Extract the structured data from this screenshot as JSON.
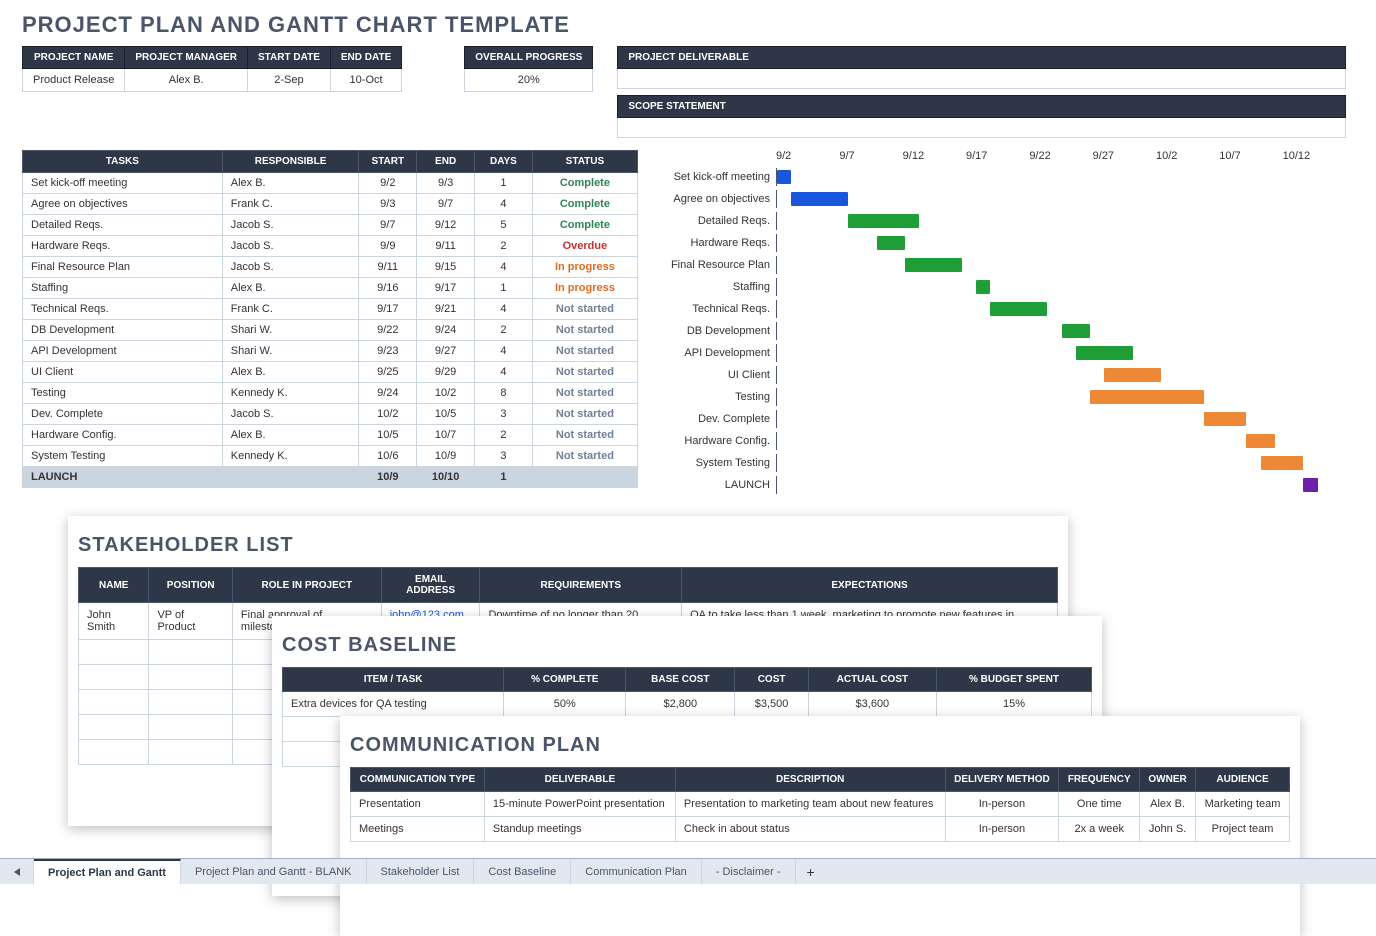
{
  "page_title": "PROJECT PLAN AND GANTT CHART TEMPLATE",
  "colors": {
    "header_bg": "#2d3748",
    "header_text": "#ffffff",
    "border": "#cbd5e0",
    "muted": "#4a5568",
    "launch_row_bg": "#cbd5e0",
    "status_complete": "#2f855a",
    "status_overdue": "#c53030",
    "status_in_progress": "#dd6b20",
    "status_not_started": "#718096",
    "gantt_blue": "#1a56db",
    "gantt_green": "#1f9d37",
    "gantt_orange": "#ed8936",
    "gantt_purple": "#6b21a8"
  },
  "meta": {
    "columns": [
      "PROJECT NAME",
      "PROJECT MANAGER",
      "START DATE",
      "END DATE"
    ],
    "values": [
      "Product Release",
      "Alex B.",
      "2-Sep",
      "10-Oct"
    ],
    "overall_progress_label": "OVERALL PROGRESS",
    "overall_progress_value": "20%",
    "project_deliverable_label": "PROJECT DELIVERABLE",
    "project_deliverable_value": "",
    "scope_statement_label": "SCOPE STATEMENT",
    "scope_statement_value": ""
  },
  "tasks": {
    "columns": [
      "TASKS",
      "RESPONSIBLE",
      "START",
      "END",
      "DAYS",
      "STATUS"
    ],
    "rows": [
      {
        "task": "Set kick-off meeting",
        "responsible": "Alex B.",
        "start": "9/2",
        "end": "9/3",
        "days": "1",
        "status": "Complete",
        "status_class": "status-complete"
      },
      {
        "task": "Agree on objectives",
        "responsible": "Frank C.",
        "start": "9/3",
        "end": "9/7",
        "days": "4",
        "status": "Complete",
        "status_class": "status-complete"
      },
      {
        "task": "Detailed Reqs.",
        "responsible": "Jacob S.",
        "start": "9/7",
        "end": "9/12",
        "days": "5",
        "status": "Complete",
        "status_class": "status-complete"
      },
      {
        "task": "Hardware Reqs.",
        "responsible": "Jacob S.",
        "start": "9/9",
        "end": "9/11",
        "days": "2",
        "status": "Overdue",
        "status_class": "status-overdue"
      },
      {
        "task": "Final Resource Plan",
        "responsible": "Jacob S.",
        "start": "9/11",
        "end": "9/15",
        "days": "4",
        "status": "In progress",
        "status_class": "status-progress"
      },
      {
        "task": "Staffing",
        "responsible": "Alex B.",
        "start": "9/16",
        "end": "9/17",
        "days": "1",
        "status": "In progress",
        "status_class": "status-progress"
      },
      {
        "task": "Technical Reqs.",
        "responsible": "Frank C.",
        "start": "9/17",
        "end": "9/21",
        "days": "4",
        "status": "Not started",
        "status_class": "status-notstarted"
      },
      {
        "task": "DB Development",
        "responsible": "Shari W.",
        "start": "9/22",
        "end": "9/24",
        "days": "2",
        "status": "Not started",
        "status_class": "status-notstarted"
      },
      {
        "task": "API Development",
        "responsible": "Shari W.",
        "start": "9/23",
        "end": "9/27",
        "days": "4",
        "status": "Not started",
        "status_class": "status-notstarted"
      },
      {
        "task": "UI Client",
        "responsible": "Alex B.",
        "start": "9/25",
        "end": "9/29",
        "days": "4",
        "status": "Not started",
        "status_class": "status-notstarted"
      },
      {
        "task": "Testing",
        "responsible": "Kennedy K.",
        "start": "9/24",
        "end": "10/2",
        "days": "8",
        "status": "Not started",
        "status_class": "status-notstarted"
      },
      {
        "task": "Dev. Complete",
        "responsible": "Jacob S.",
        "start": "10/2",
        "end": "10/5",
        "days": "3",
        "status": "Not started",
        "status_class": "status-notstarted"
      },
      {
        "task": "Hardware Config.",
        "responsible": "Alex B.",
        "start": "10/5",
        "end": "10/7",
        "days": "2",
        "status": "Not started",
        "status_class": "status-notstarted"
      },
      {
        "task": "System Testing",
        "responsible": "Kennedy K.",
        "start": "10/6",
        "end": "10/9",
        "days": "3",
        "status": "Not started",
        "status_class": "status-notstarted"
      },
      {
        "task": "LAUNCH",
        "responsible": "",
        "start": "10/9",
        "end": "10/10",
        "days": "1",
        "status": "",
        "status_class": "",
        "launch": true
      }
    ]
  },
  "gantt": {
    "axis_start_day": 2,
    "axis_end_day": 42,
    "axis_ticks": [
      "9/2",
      "9/7",
      "9/12",
      "9/17",
      "9/22",
      "9/27",
      "10/2",
      "10/7",
      "10/12"
    ],
    "bars": [
      {
        "label": "Set kick-off meeting",
        "start": 2,
        "end": 3,
        "color": "#1a56db"
      },
      {
        "label": "Agree on objectives",
        "start": 3,
        "end": 7,
        "color": "#1a56db"
      },
      {
        "label": "Detailed Reqs.",
        "start": 7,
        "end": 12,
        "color": "#1f9d37"
      },
      {
        "label": "Hardware Reqs.",
        "start": 9,
        "end": 11,
        "color": "#1f9d37"
      },
      {
        "label": "Final Resource Plan",
        "start": 11,
        "end": 15,
        "color": "#1f9d37"
      },
      {
        "label": "Staffing",
        "start": 16,
        "end": 17,
        "color": "#1f9d37"
      },
      {
        "label": "Technical Reqs.",
        "start": 17,
        "end": 21,
        "color": "#1f9d37"
      },
      {
        "label": "DB Development",
        "start": 22,
        "end": 24,
        "color": "#1f9d37"
      },
      {
        "label": "API Development",
        "start": 23,
        "end": 27,
        "color": "#1f9d37"
      },
      {
        "label": "UI Client",
        "start": 25,
        "end": 29,
        "color": "#ed8936"
      },
      {
        "label": "Testing",
        "start": 24,
        "end": 32,
        "color": "#ed8936"
      },
      {
        "label": "Dev. Complete",
        "start": 32,
        "end": 35,
        "color": "#ed8936"
      },
      {
        "label": "Hardware Config.",
        "start": 35,
        "end": 37,
        "color": "#ed8936"
      },
      {
        "label": "System Testing",
        "start": 36,
        "end": 39,
        "color": "#ed8936"
      },
      {
        "label": "LAUNCH",
        "start": 39,
        "end": 40,
        "color": "#6b21a8"
      }
    ]
  },
  "stakeholder": {
    "title": "STAKEHOLDER LIST",
    "columns": [
      "NAME",
      "POSITION",
      "ROLE IN PROJECT",
      "EMAIL ADDRESS",
      "REQUIREMENTS",
      "EXPECTATIONS"
    ],
    "rows": [
      [
        "John Smith",
        "VP of Product",
        "Final approval of milestones",
        "john@123.com",
        "Downtime of no longer than 20 minutes",
        "QA to take less than 1 week, marketing to promote new features in newsletter"
      ]
    ]
  },
  "cost": {
    "title": "COST BASELINE",
    "columns": [
      "ITEM / TASK",
      "% COMPLETE",
      "BASE COST",
      "COST",
      "ACTUAL COST",
      "% BUDGET SPENT"
    ],
    "rows": [
      [
        "Extra devices for QA testing",
        "50%",
        "$2,800",
        "$3,500",
        "$3,600",
        "15%"
      ]
    ]
  },
  "comms": {
    "title": "COMMUNICATION PLAN",
    "columns": [
      "COMMUNICATION TYPE",
      "DELIVERABLE",
      "DESCRIPTION",
      "DELIVERY METHOD",
      "FREQUENCY",
      "OWNER",
      "AUDIENCE"
    ],
    "rows": [
      [
        "Presentation",
        "15-minute PowerPoint presentation",
        "Presentation to marketing team about new features",
        "In-person",
        "One time",
        "Alex B.",
        "Marketing team"
      ],
      [
        "Meetings",
        "Standup meetings",
        "Check in about status",
        "In-person",
        "2x a week",
        "John S.",
        "Project team"
      ]
    ]
  },
  "tabs": [
    {
      "label": "Project Plan and Gantt",
      "active": true
    },
    {
      "label": "Project Plan and Gantt - BLANK",
      "active": false
    },
    {
      "label": "Stakeholder List",
      "active": false
    },
    {
      "label": "Cost Baseline",
      "active": false
    },
    {
      "label": "Communication Plan",
      "active": false
    },
    {
      "label": "- Disclaimer -",
      "active": false
    }
  ]
}
